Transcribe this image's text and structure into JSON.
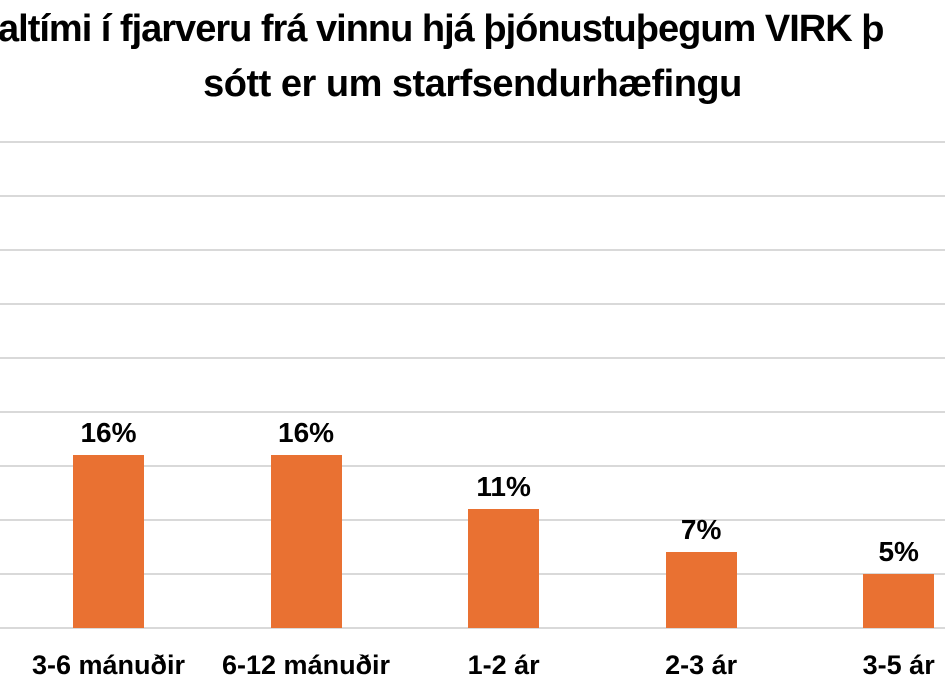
{
  "title": {
    "line1": "altími í fjarveru frá vinnu hjá þjónustuþegum VIRK þ",
    "line2": "sótt er um starfsendurhæfingu"
  },
  "chart_data": {
    "type": "bar",
    "title": "altími í fjarveru frá vinnu hjá þjónustuþegum VIRK þ sótt er um starfsendurhæfingu",
    "categories": [
      "3-6 mánuðir",
      "6-12 mánuðir",
      "1-2 ár",
      "2-3 ár",
      "3-5 ár"
    ],
    "values": [
      16,
      16,
      11,
      7,
      5
    ],
    "data_labels": [
      "16%",
      "16%",
      "11%",
      "7%",
      "5%"
    ],
    "xlabel": "",
    "ylabel": "",
    "ylim": [
      0,
      45
    ],
    "gridline_step": 5,
    "grid": true,
    "legend": false,
    "axis_tick_labels_visible": false,
    "bar_color": "#E97132",
    "gridline_color": "#D9D9D9",
    "text_color": "#000000",
    "background_color": "#FFFFFF"
  }
}
